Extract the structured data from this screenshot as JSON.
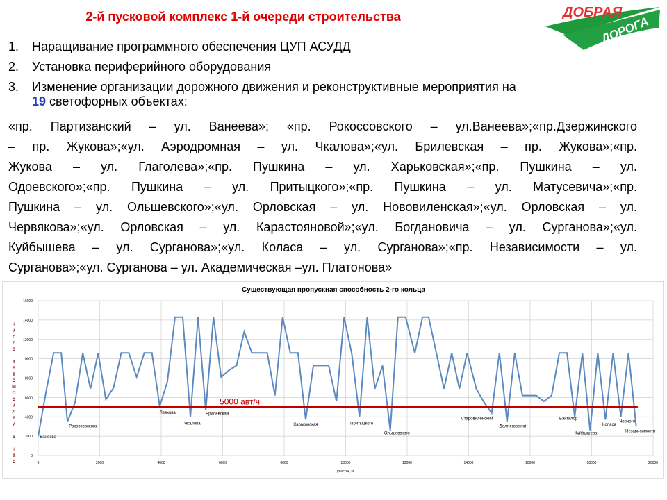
{
  "header": {
    "title": "2-й пусковой комплекс 1-й очереди строительства",
    "logo": [
      "ДОБРАЯ",
      "ДОРОГА"
    ]
  },
  "list": [
    {
      "number": "1.",
      "text": "Наращивание программного обеспечения ЦУП АСУДД"
    },
    {
      "number": "2.",
      "text": "Установка периферийного оборудования"
    },
    {
      "number": "3.",
      "text": "Изменение организации дорожного движения  и реконструктивные мероприятия на",
      "count": 19,
      "text_after": "светофорных объектах:"
    }
  ],
  "paragraph": [
    "«пр. Партизанский – ул. Ванеева»; «пр. Рокоссовского – ул.Ванеева»;«пр.Дзержинского",
    "– пр. Жукова»;«ул. Аэродромная – ул. Чкалова»;«ул. Брилевская – пр. Жукова»;«пр.",
    "Жукова – ул. Глаголева»;«пр. Пушкина – ул. Харьковская»;«пр. Пушкина – ул.",
    "Одоевского»;«пр. Пушкина – ул. Притыцкого»;«пр. Пушкина – ул. Матусевича»;«пр.",
    "Пушкина – ул. Ольшевского»;«ул. Орловская – ул. Нововиленская»;«ул. Орловская – ул.",
    "Червякова»;«ул. Орловская – ул. Карастояновой»;«ул. Богдановича – ул. Сурганова»;«ул.",
    "Куйбышева – ул. Сурганова»;«ул. Коласа – ул. Сурганова»;«пр. Независимости – ул.",
    "Сурганова»;«ул. Сурганова – ул. Академическая –ул. Платонова»"
  ],
  "chart_data": {
    "type": "line",
    "title": "Существующая пропускная способность 2-го кольца",
    "xlabel": "участок, м",
    "ylabel": "число автомобилей в час",
    "color": "#5b8ac0",
    "x": [
      0,
      250,
      500,
      750,
      950,
      1200,
      1450,
      1700,
      1950,
      2200,
      2450,
      2700,
      2950,
      3200,
      3450,
      3700,
      3950,
      4200,
      4450,
      4700,
      4950,
      5200,
      5450,
      5700,
      5950,
      6200,
      6450,
      6700,
      6950,
      7450,
      7700,
      7950,
      8200,
      8450,
      8700,
      8950,
      9450,
      9700,
      9950,
      10200,
      10450,
      10700,
      10950,
      11200,
      11450,
      11700,
      11950,
      12250,
      12500,
      12700,
      13200,
      13450,
      13700,
      13950,
      14250,
      14500,
      14750,
      15000,
      15250,
      15500,
      15750,
      16200,
      16450,
      16700,
      16950,
      17200,
      17450,
      17700,
      17950,
      18200,
      18450,
      18700,
      18950,
      19200,
      19450
    ],
    "values": [
      2000,
      6500,
      10600,
      10600,
      3500,
      5500,
      10600,
      6900,
      10600,
      5800,
      7000,
      10600,
      10600,
      8100,
      10600,
      10600,
      5100,
      7600,
      14300,
      14300,
      4000,
      14300,
      4700,
      14300,
      8100,
      8800,
      9300,
      12800,
      10600,
      10600,
      6200,
      14300,
      10600,
      10600,
      3700,
      9300,
      9300,
      5600,
      14300,
      10500,
      4000,
      14300,
      6900,
      9300,
      2600,
      14300,
      14300,
      10600,
      14300,
      14300,
      6900,
      10600,
      6900,
      10600,
      6900,
      5500,
      4400,
      10600,
      3500,
      10600,
      6200,
      6200,
      5600,
      6200,
      10600,
      10600,
      4000,
      10600,
      2600,
      10600,
      3700,
      10600,
      4000,
      10600,
      3000
    ],
    "xlim": [
      0,
      20000
    ],
    "ylim": [
      0,
      16000
    ],
    "xticks": [
      0,
      2000,
      4000,
      6000,
      8000,
      10000,
      12000,
      14000,
      16000,
      18000,
      20000
    ],
    "yticks": [
      0,
      2000,
      4000,
      6000,
      8000,
      10000,
      12000,
      14000,
      16000
    ],
    "grid": true,
    "threshold": {
      "value": 5000,
      "label": "5000 авт/ч",
      "color": "#c00000"
    },
    "annotations": [
      {
        "text": "Ванеева",
        "x": 50,
        "y": 1800
      },
      {
        "text": "Рокоссовского",
        "x": 1000,
        "y": 2900
      },
      {
        "text": "Левкова",
        "x": 3950,
        "y": 4300
      },
      {
        "text": "Чкалова",
        "x": 4750,
        "y": 3200
      },
      {
        "text": "Брилевская",
        "x": 5450,
        "y": 4200
      },
      {
        "text": "Харьковская",
        "x": 8300,
        "y": 3100
      },
      {
        "text": "Притыцкого",
        "x": 10150,
        "y": 3200
      },
      {
        "text": "Ольшевского",
        "x": 11250,
        "y": 2200
      },
      {
        "text": "Старовиленский",
        "x": 13750,
        "y": 3700
      },
      {
        "text": "Долгиновский",
        "x": 15000,
        "y": 2900
      },
      {
        "text": "Бангалор",
        "x": 16950,
        "y": 3700
      },
      {
        "text": "Куйбышева",
        "x": 17450,
        "y": 2200
      },
      {
        "text": "Коласа",
        "x": 18350,
        "y": 3100
      },
      {
        "text": "Чорного",
        "x": 18900,
        "y": 3400
      },
      {
        "text": "Независимости",
        "x": 19100,
        "y": 2400
      }
    ]
  }
}
